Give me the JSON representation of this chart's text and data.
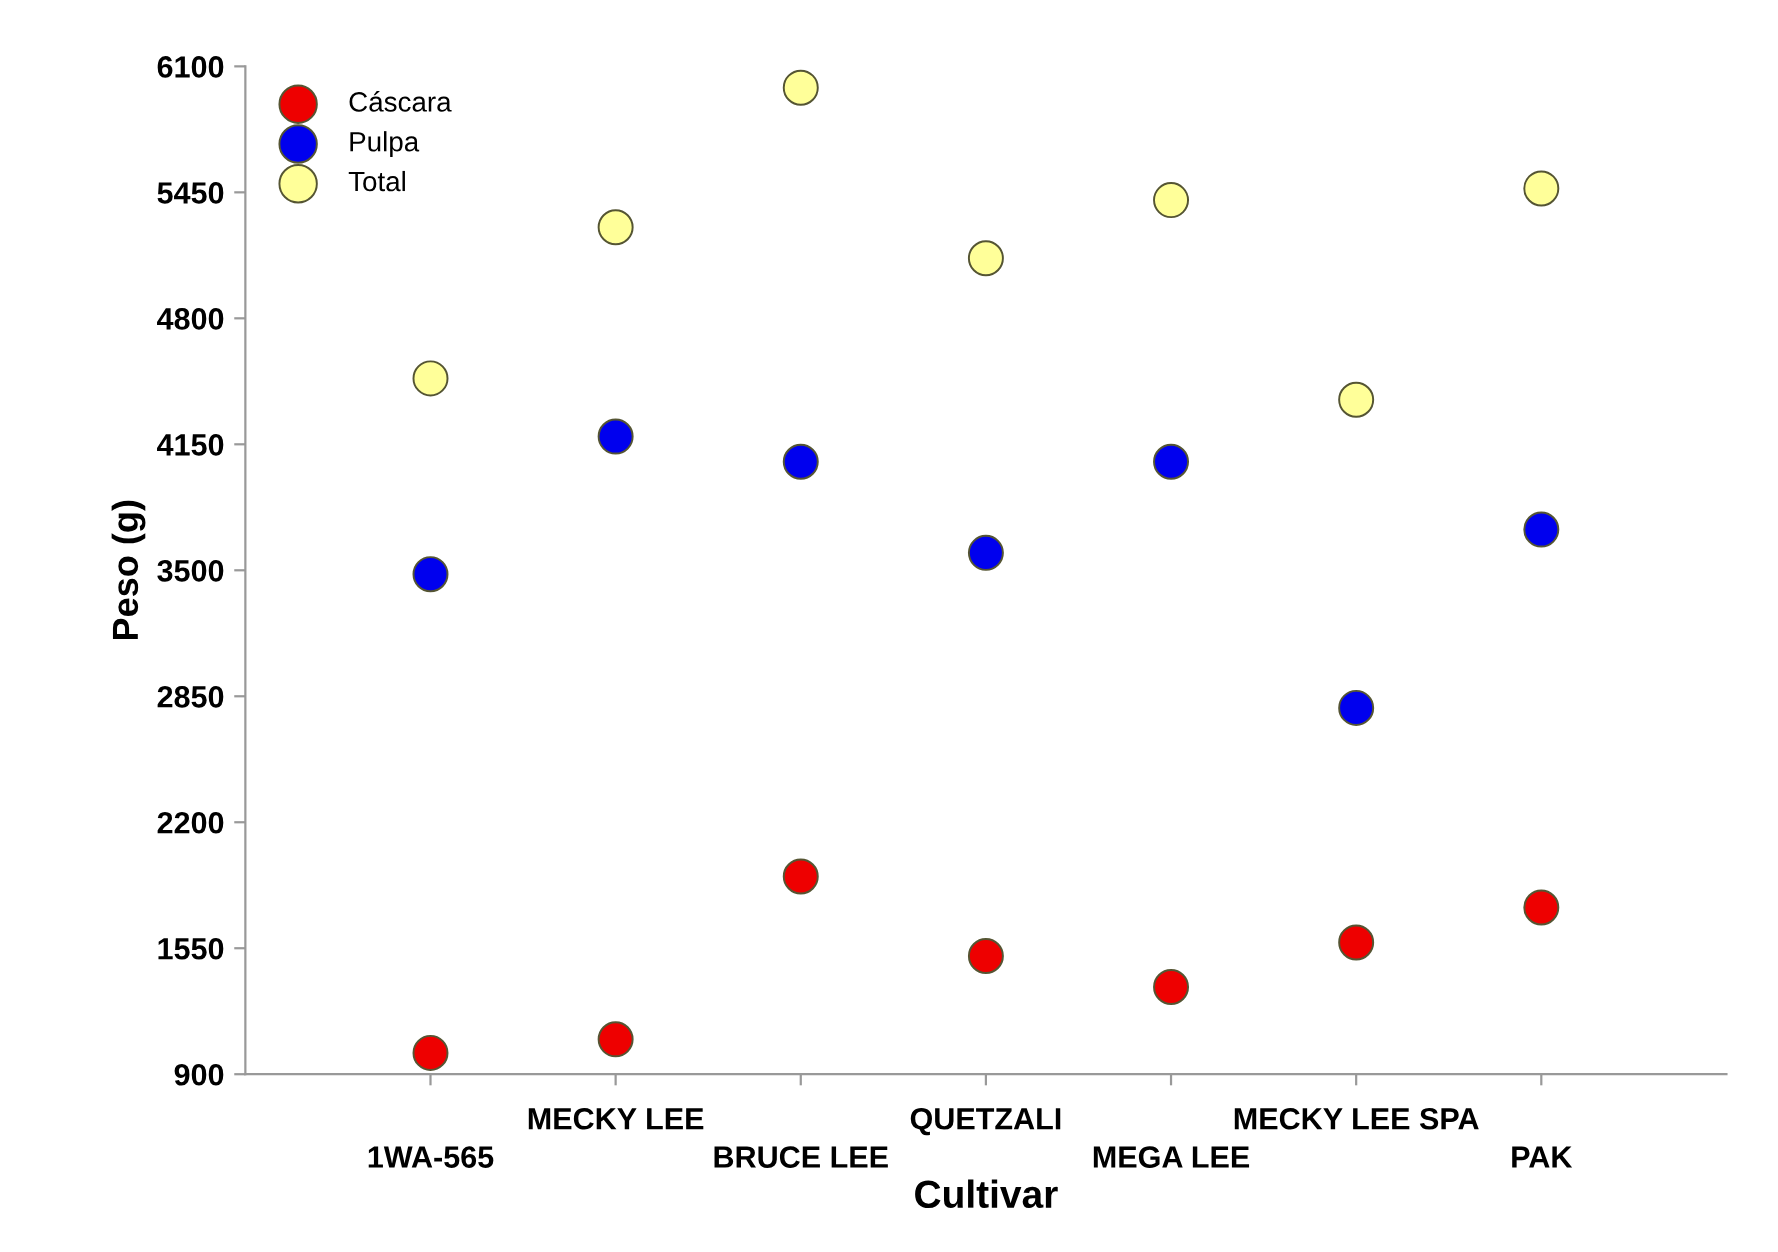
{
  "chart_data": {
    "type": "scatter",
    "xlabel": "Cultivar",
    "ylabel": "Peso (g)",
    "categories": [
      "1WA-565",
      "MECKY LEE",
      "BRUCE LEE",
      "QUETZALI",
      "MEGA LEE",
      "MECKY LEE SPA",
      "PAK"
    ],
    "series": [
      {
        "name": "Cáscara",
        "color": "#ee0000",
        "values": [
          1010,
          1080,
          1920,
          1510,
          1350,
          1580,
          1760
        ]
      },
      {
        "name": "Pulpa",
        "color": "#0000ee",
        "values": [
          3480,
          4190,
          4060,
          3590,
          4060,
          2790,
          3710
        ]
      },
      {
        "name": "Total",
        "color": "#ffff99",
        "values": [
          4490,
          5270,
          5990,
          5110,
          5410,
          4380,
          5470
        ]
      }
    ],
    "ylim": [
      900,
      6100
    ],
    "yticks": [
      900,
      1550,
      2200,
      2850,
      3500,
      4150,
      4800,
      5450,
      6100
    ],
    "grid": false,
    "legend": "top left",
    "marker": "circle"
  }
}
